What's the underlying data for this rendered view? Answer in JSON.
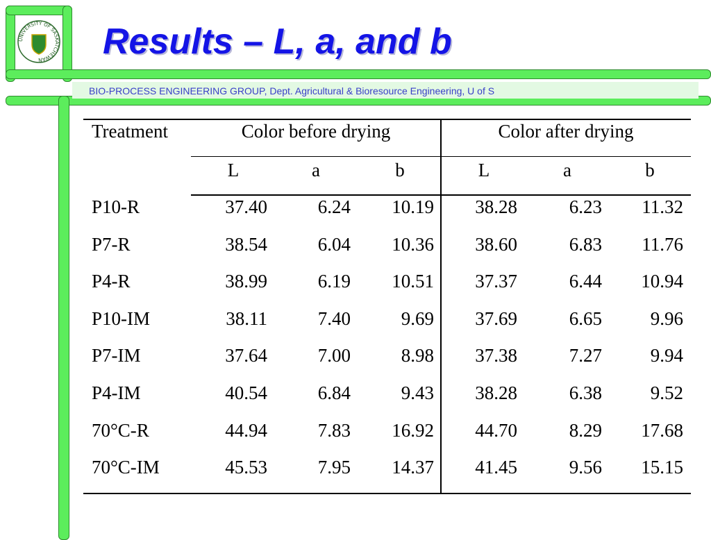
{
  "header": {
    "title": "Results – L, a, and b",
    "subtitle": "BIO-PROCESS ENGINEERING GROUP, Dept. Agricultural & Bioresource Engineering, U of S",
    "logo_text": "UNIVERSITY OF SASKATCHEWAN"
  },
  "table": {
    "headers": [
      "Treatment",
      "Color before drying",
      "Color after drying"
    ],
    "subheaders": [
      "L",
      "a",
      "b",
      "L",
      "a",
      "b"
    ],
    "rows": [
      [
        "P10-R",
        "37.40",
        "6.24",
        "10.19",
        "38.28",
        "6.23",
        "11.32"
      ],
      [
        "P7-R",
        "38.54",
        "6.04",
        "10.36",
        "38.60",
        "6.83",
        "11.76"
      ],
      [
        "P4-R",
        "38.99",
        "6.19",
        "10.51",
        "37.37",
        "6.44",
        "10.94"
      ],
      [
        "P10-IM",
        "38.11",
        "7.40",
        "9.69",
        "37.69",
        "6.65",
        "9.96"
      ],
      [
        "P7-IM",
        "37.64",
        "7.00",
        "8.98",
        "37.38",
        "7.27",
        "9.94"
      ],
      [
        "P4-IM",
        "40.54",
        "6.84",
        "9.43",
        "38.28",
        "6.38",
        "9.52"
      ],
      [
        "70°C-R",
        "44.94",
        "7.83",
        "16.92",
        "44.70",
        "8.29",
        "17.68"
      ],
      [
        "70°C-IM",
        "45.53",
        "7.95",
        "14.37",
        "41.45",
        "9.56",
        "15.15"
      ]
    ]
  }
}
